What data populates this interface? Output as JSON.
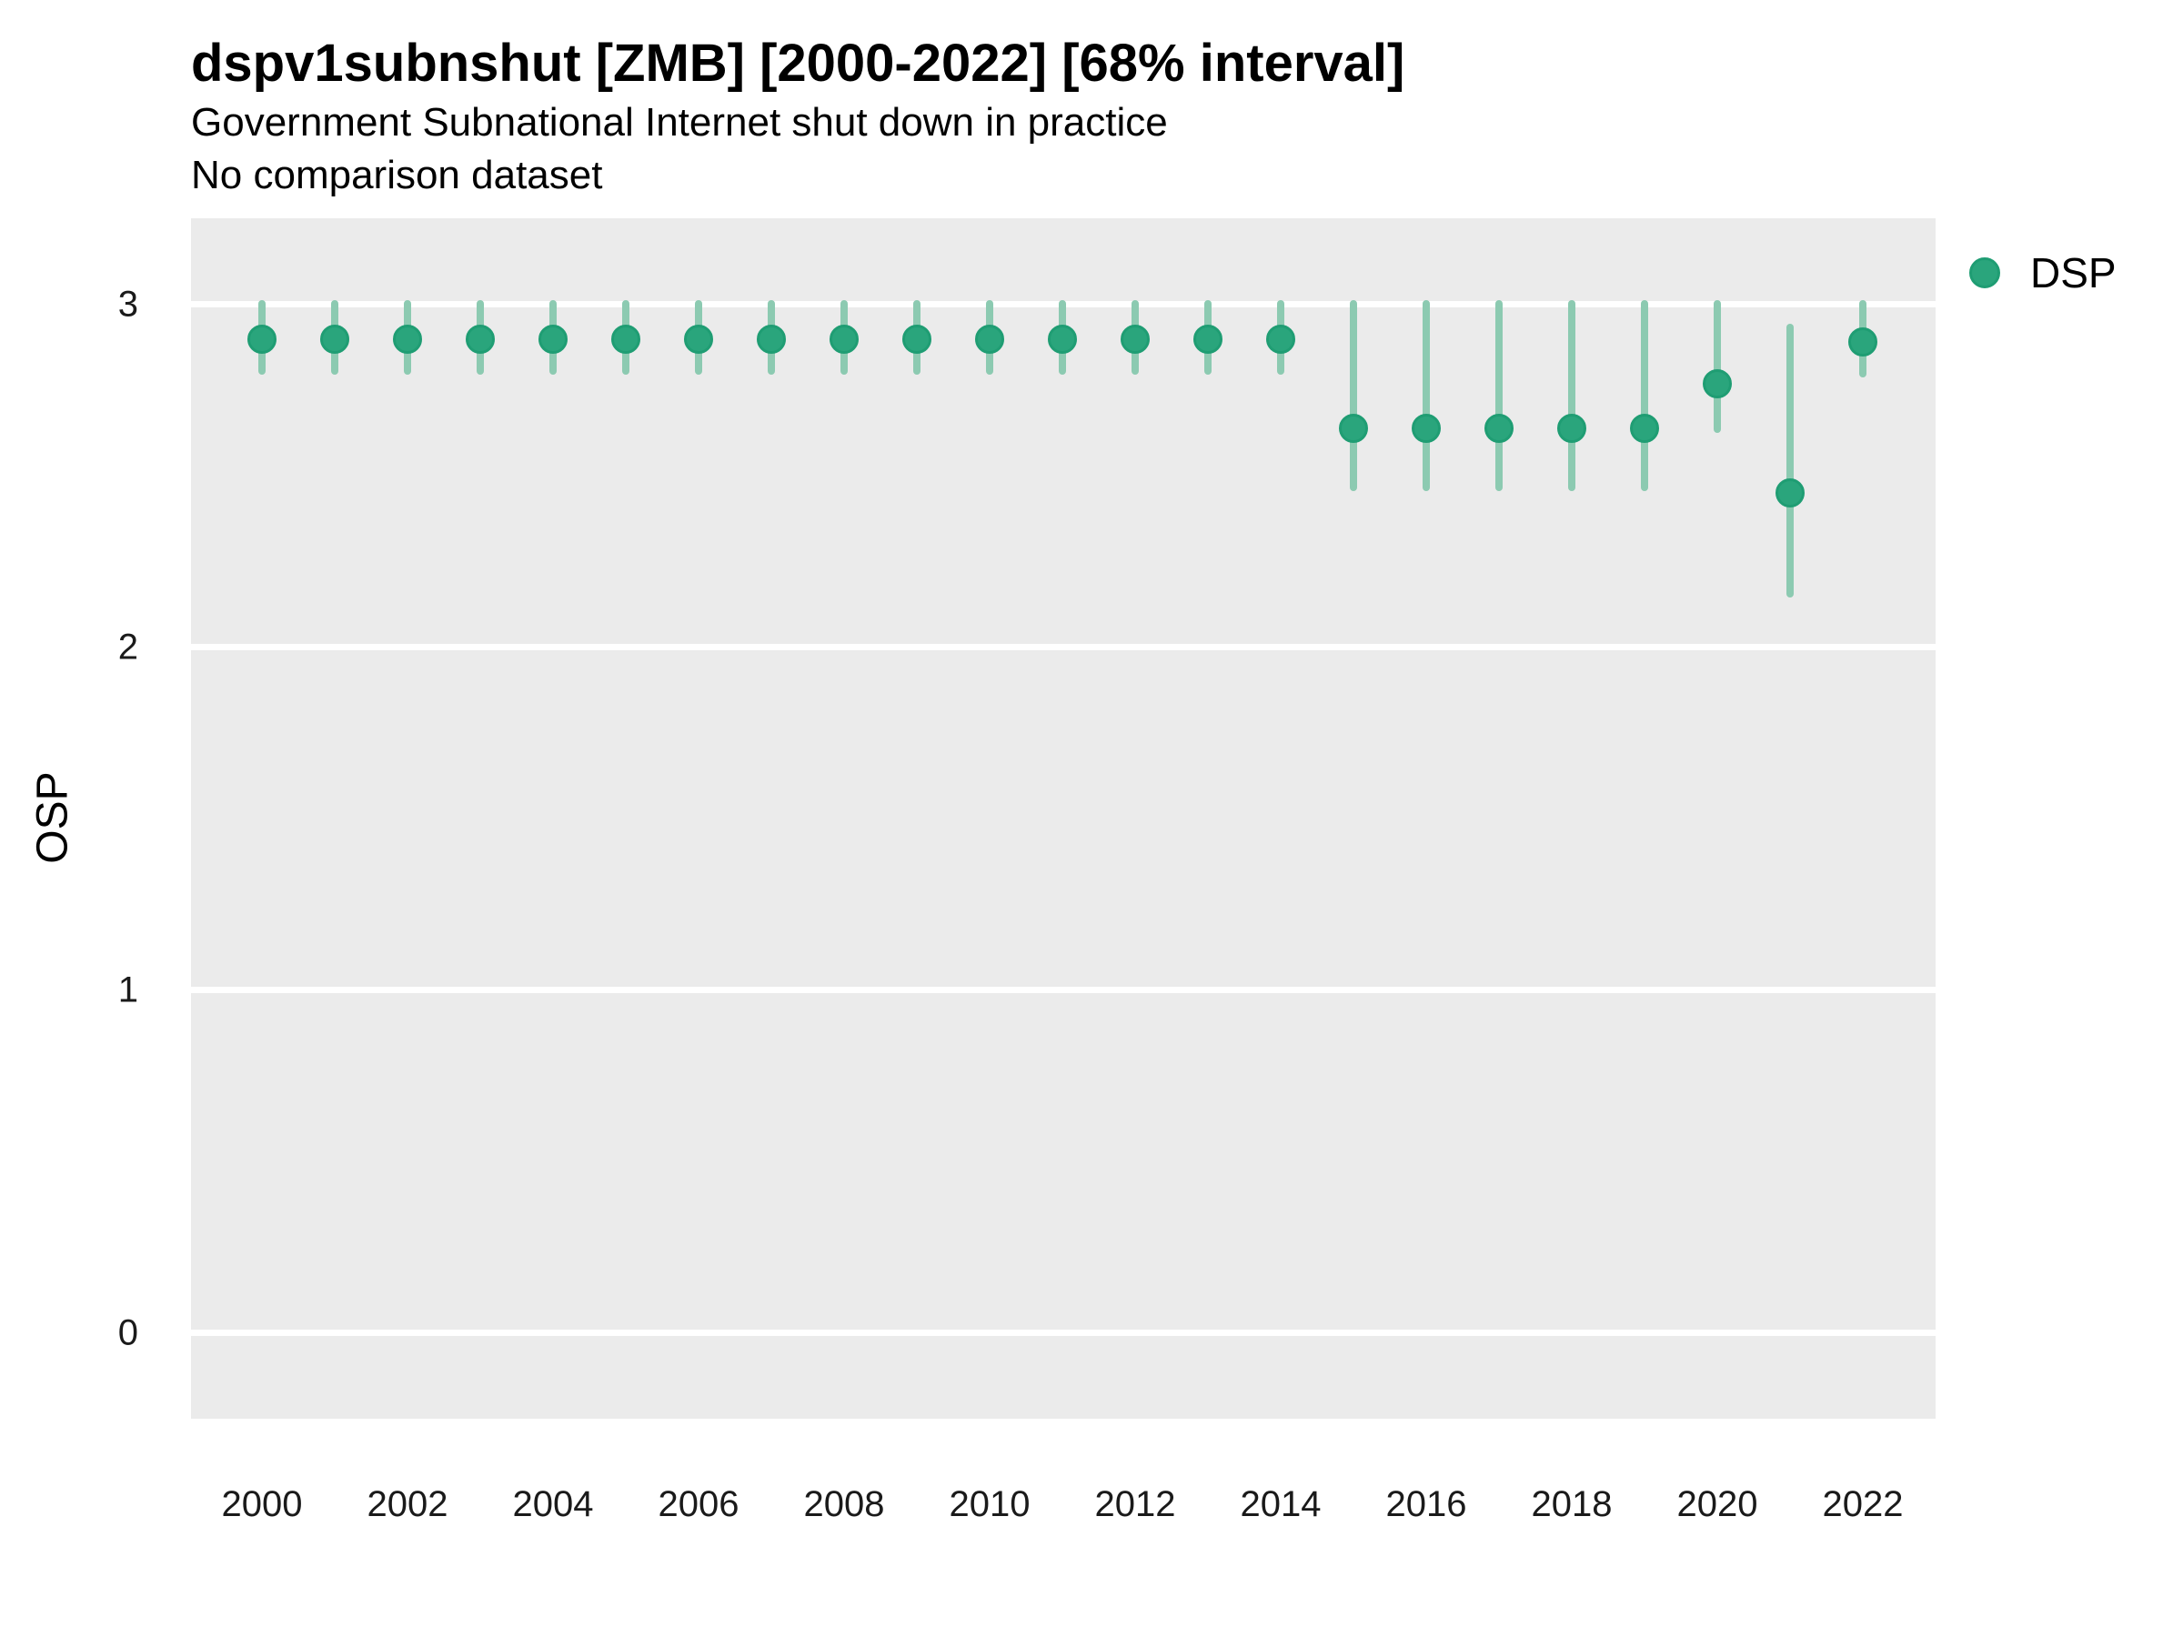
{
  "title": "dspv1subnshut [ZMB] [2000-2022] [68% interval]",
  "subtitle": "Government Subnational Internet shut down in practice",
  "note": "No comparison dataset",
  "y_axis_label": "OSP",
  "legend": {
    "position": "right",
    "items": [
      {
        "label": "DSP",
        "swatch": "point-icon"
      }
    ]
  },
  "colors": {
    "point_fill": "#2AA57C",
    "point_stroke": "#1F9D73",
    "interval_bar": "#8CCAB1",
    "panel_background": "#EBEBEB",
    "gridline": "#FFFFFF",
    "text": "#000000"
  },
  "chart_data": {
    "type": "scatter",
    "subtype": "point-range",
    "title": "dspv1subnshut [ZMB] [2000-2022] [68% interval]",
    "subtitle": "Government Subnational Internet shut down in practice",
    "note": "No comparison dataset",
    "interval": "68%",
    "xlabel": "",
    "ylabel": "OSP",
    "xlim": [
      1999.025,
      2023.0
    ],
    "ylim": [
      -0.25,
      3.252
    ],
    "yticks": [
      0,
      1,
      2,
      3
    ],
    "xticks": [
      2000,
      2002,
      2004,
      2006,
      2008,
      2010,
      2012,
      2014,
      2016,
      2018,
      2020,
      2022
    ],
    "grid": "major-horizontal-only",
    "legend_position": "right",
    "series": [
      {
        "name": "DSP",
        "points": [
          {
            "year": 2000,
            "est": 2.9,
            "lo": 2.81,
            "hi": 3.0
          },
          {
            "year": 2001,
            "est": 2.9,
            "lo": 2.81,
            "hi": 3.0
          },
          {
            "year": 2002,
            "est": 2.9,
            "lo": 2.81,
            "hi": 3.0
          },
          {
            "year": 2003,
            "est": 2.9,
            "lo": 2.81,
            "hi": 3.0
          },
          {
            "year": 2004,
            "est": 2.9,
            "lo": 2.81,
            "hi": 3.0
          },
          {
            "year": 2005,
            "est": 2.9,
            "lo": 2.81,
            "hi": 3.0
          },
          {
            "year": 2006,
            "est": 2.9,
            "lo": 2.81,
            "hi": 3.0
          },
          {
            "year": 2007,
            "est": 2.9,
            "lo": 2.81,
            "hi": 3.0
          },
          {
            "year": 2008,
            "est": 2.9,
            "lo": 2.81,
            "hi": 3.0
          },
          {
            "year": 2009,
            "est": 2.9,
            "lo": 2.81,
            "hi": 3.0
          },
          {
            "year": 2010,
            "est": 2.9,
            "lo": 2.81,
            "hi": 3.0
          },
          {
            "year": 2011,
            "est": 2.9,
            "lo": 2.81,
            "hi": 3.0
          },
          {
            "year": 2012,
            "est": 2.9,
            "lo": 2.81,
            "hi": 3.0
          },
          {
            "year": 2013,
            "est": 2.9,
            "lo": 2.81,
            "hi": 3.0
          },
          {
            "year": 2014,
            "est": 2.9,
            "lo": 2.81,
            "hi": 3.0
          },
          {
            "year": 2015,
            "est": 2.64,
            "lo": 2.47,
            "hi": 3.0
          },
          {
            "year": 2016,
            "est": 2.64,
            "lo": 2.47,
            "hi": 3.0
          },
          {
            "year": 2017,
            "est": 2.64,
            "lo": 2.47,
            "hi": 3.0
          },
          {
            "year": 2018,
            "est": 2.64,
            "lo": 2.47,
            "hi": 3.0
          },
          {
            "year": 2019,
            "est": 2.64,
            "lo": 2.47,
            "hi": 3.0
          },
          {
            "year": 2020,
            "est": 2.77,
            "lo": 2.64,
            "hi": 3.0
          },
          {
            "year": 2021,
            "est": 2.45,
            "lo": 2.16,
            "hi": 2.93
          },
          {
            "year": 2022,
            "est": 2.89,
            "lo": 2.8,
            "hi": 3.0
          }
        ]
      }
    ]
  }
}
